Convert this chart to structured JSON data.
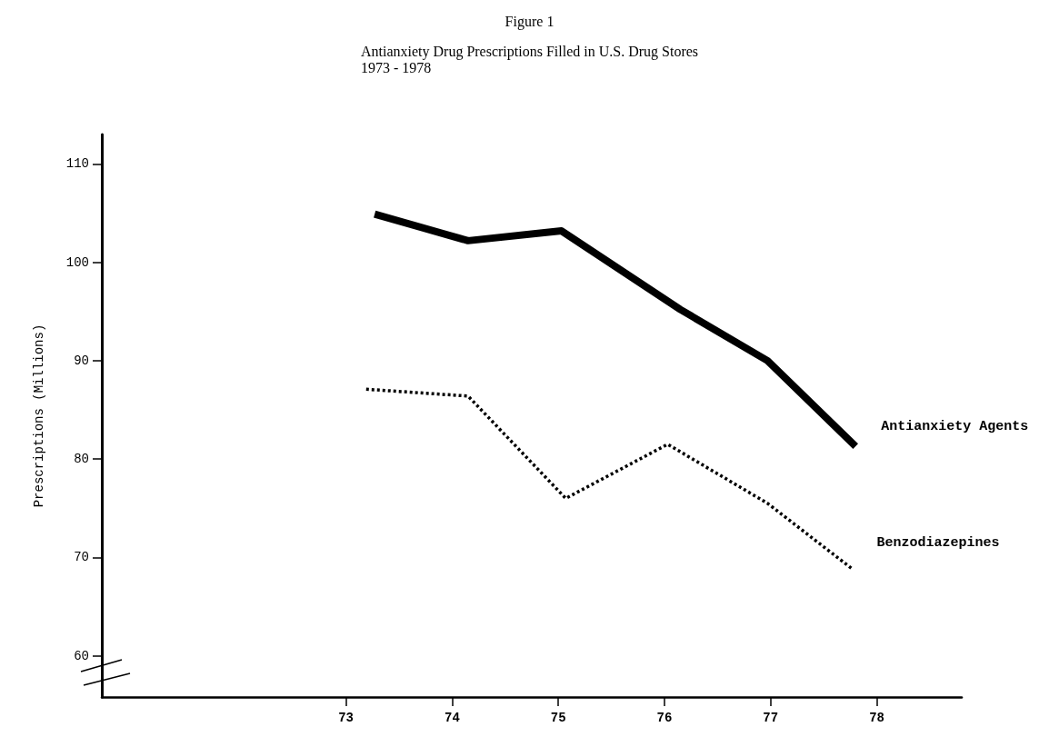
{
  "chart_data": {
    "type": "line",
    "title": "Figure 1",
    "subtitle": "Antianxiety Drug Prescriptions Filled in U.S. Drug Stores\n1973 - 1978",
    "ylabel": "Prescriptions (Millions)",
    "series": [
      {
        "name": "Antianxiety Agents",
        "color": "#000000",
        "line_style": "solid",
        "x": [
          73.27,
          74.15,
          75.03,
          76.15,
          76.97,
          77.8
        ],
        "values": [
          104.9,
          102.2,
          103.2,
          95.2,
          90,
          81.3
        ]
      },
      {
        "name": "Benzodiazepines",
        "color": "#000000",
        "line_style": "dotted",
        "x": [
          73.19,
          74.15,
          75.07,
          76.03,
          76.97,
          77.76
        ],
        "values": [
          87.1,
          86.4,
          76,
          81.5,
          75.5,
          68.9
        ]
      }
    ],
    "xlim": [
      70.7,
      78.8
    ],
    "xticks": [
      73,
      74,
      75,
      76,
      77,
      78
    ],
    "ylim": [
      55.8,
      113
    ],
    "yticks": [
      60,
      70,
      80,
      90,
      100,
      110
    ],
    "grid": false,
    "legend": false,
    "marker": "none"
  }
}
